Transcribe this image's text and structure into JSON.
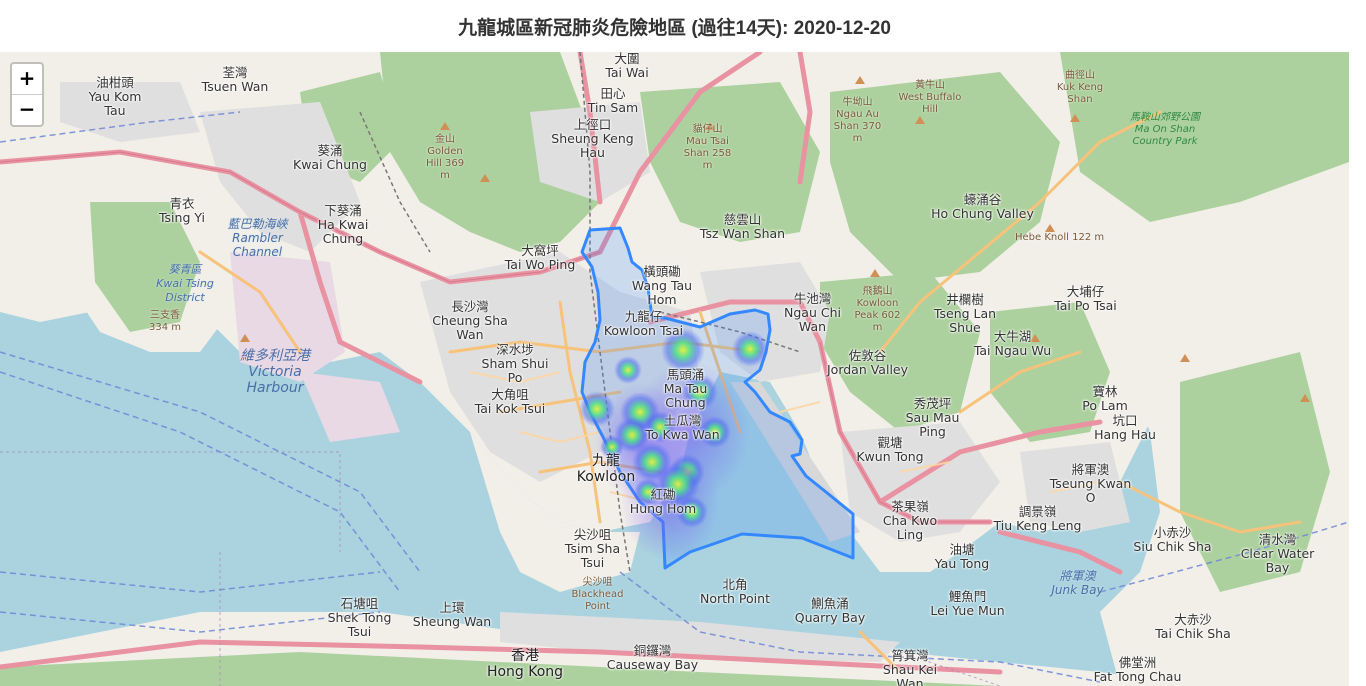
{
  "title": "九龍城區新冠肺炎危險地區 (過往14天): 2020-12-20",
  "zoom": {
    "in_label": "+",
    "out_label": "−"
  },
  "places": [
    {
      "id": "tai-wai",
      "text": "大圍 Tai Wai"
    },
    {
      "id": "tsuen-wan",
      "text": "荃灣 Tsuen Wan"
    },
    {
      "id": "kwai-chung",
      "text": "葵涌 Kwai Chung"
    },
    {
      "id": "tsing-yi",
      "text": "青衣 Tsing Yi"
    },
    {
      "id": "ha-kwai-chung",
      "text": "下葵涌 Ha Kwai Chung"
    },
    {
      "id": "tai-wo-ping",
      "text": "大窩坪 Tai Wo Ping"
    },
    {
      "id": "cheung-sha-wan",
      "text": "長沙灣 Cheung Sha Wan"
    },
    {
      "id": "sham-shui-po",
      "text": "深水埗 Sham Shui Po"
    },
    {
      "id": "tai-kok-tsui",
      "text": "大角咀 Tai Kok Tsui"
    },
    {
      "id": "kowloon",
      "text": "九龍 Kowloon"
    },
    {
      "id": "tsim-sha-tsui",
      "text": "尖沙咀 Tsim Sha Tsui"
    },
    {
      "id": "kowloon-tsai",
      "text": "九龍仔 Kowloon Tsai"
    },
    {
      "id": "wang-tau-hom",
      "text": "橫頭磡 Wang Tau Hom"
    },
    {
      "id": "ma-tau-chung",
      "text": "馬頭涌 Ma Tau Chung"
    },
    {
      "id": "to-kwa-wan",
      "text": "土瓜灣 To Kwa Wan"
    },
    {
      "id": "hung-hom",
      "text": "紅磡 Hung Hom"
    },
    {
      "id": "tsz-wan-shan",
      "text": "慈雲山 Tsz Wan Shan"
    },
    {
      "id": "ngau-chi-wan",
      "text": "牛池灣 Ngau Chi Wan"
    },
    {
      "id": "jordan-valley",
      "text": "佐敦谷 Jordan Valley"
    },
    {
      "id": "sau-mau-ping",
      "text": "秀茂坪 Sau Mau Ping"
    },
    {
      "id": "kwun-tong",
      "text": "觀塘 Kwun Tong"
    },
    {
      "id": "cha-kwo-ling",
      "text": "茶果嶺 Cha Kwo Ling"
    },
    {
      "id": "yau-tong",
      "text": "油塘 Yau Tong"
    },
    {
      "id": "tseung-kwan-o",
      "text": "將軍澳 Tseung Kwan O"
    },
    {
      "id": "tiu-keng-leng",
      "text": "調景嶺 Tiu Keng Leng"
    },
    {
      "id": "hang-hau",
      "text": "坑口 Hang Hau"
    },
    {
      "id": "po-lam",
      "text": "寶林 Po Lam"
    },
    {
      "id": "tai-po-tsai",
      "text": "大埔仔 Tai Po Tsai"
    },
    {
      "id": "tai-ngau-wu",
      "text": "大牛湖 Tai Ngau Wu"
    },
    {
      "id": "lam-shue",
      "text": "井欄樹 Tseng Lan Shue"
    },
    {
      "id": "ho-chung-valley",
      "text": "蠔涌谷 Ho Chung Valley"
    },
    {
      "id": "sheung-keng-hau",
      "text": "上徑口 Sheung Keng Hau"
    },
    {
      "id": "tin-sam",
      "text": "田心 Tin Sam"
    },
    {
      "id": "north-point",
      "text": "北角 North Point"
    },
    {
      "id": "quarry-bay",
      "text": "鰂魚涌 Quarry Bay"
    },
    {
      "id": "causeway-bay",
      "text": "銅鑼灣 Causeway Bay"
    },
    {
      "id": "hong-kong",
      "text": "香港 Hong Kong"
    },
    {
      "id": "sheung-wan",
      "text": "上環 Sheung Wan"
    },
    {
      "id": "shek-tong-tsui",
      "text": "石塘咀 Shek Tong Tsui"
    },
    {
      "id": "shau-kei-wan",
      "text": "筲箕灣 Shau Kei Wan"
    },
    {
      "id": "lei-yue-mun",
      "text": "鯉魚門 Lei Yue Mun"
    },
    {
      "id": "siu-chik-sha",
      "text": "小赤沙 Siu Chik Sha"
    },
    {
      "id": "clear-water-bay",
      "text": "清水灣 Clear Water Bay"
    },
    {
      "id": "tai-chik-sha",
      "text": "大赤沙 Tai Chik Sha"
    },
    {
      "id": "fat-tong-chau",
      "text": "佛堂洲 Fat Tong Chau"
    },
    {
      "id": "kwai-tsing",
      "text": "油柑頭 Yau Kom Tau"
    },
    {
      "id": "kuk-keng-shan",
      "text": "曲徑山 Kuk Keng Shan"
    },
    {
      "id": "wo-yi-hop",
      "text": "黃牛山 West Buffalo Hill"
    }
  ],
  "waters": [
    {
      "id": "victoria-harbour",
      "text": "維多利亞港 Victoria Harbour"
    },
    {
      "id": "rambler-channel",
      "text": "藍巴勒海峽 Rambler Channel"
    },
    {
      "id": "junk-bay",
      "text": "將軍澳 Junk Bay"
    },
    {
      "id": "kwai-tsing-district",
      "text": "葵青區 Kwai Tsing District"
    }
  ],
  "peaks": [
    {
      "id": "golden-hill",
      "text": "金山 Golden Hill 369 m"
    },
    {
      "id": "mau-tsai",
      "text": "貓仔山 Mau Tsai Shan 258 m"
    },
    {
      "id": "ngau-au-shan",
      "text": "牛坳山 Ngau Au Shan 370 m"
    },
    {
      "id": "kowloon-peak",
      "text": "飛鵝山 Kowloon Peak 602 m"
    },
    {
      "id": "hebe-knoll",
      "text": "Hebe Knoll 122 m"
    },
    {
      "id": "blackhead-point",
      "text": "尖沙咀 Blackhead Point"
    },
    {
      "id": "sam-chi-heung",
      "text": "三支香 334 m"
    }
  ],
  "parks": [
    {
      "id": "ma-on-shan-park",
      "text": "馬鞍山郊野公園 Ma On Shan Country Park"
    }
  ],
  "colors": {
    "sea": "#aad3df",
    "land": "#f2efe9",
    "forest": "#add19e",
    "urban": "#e0dfdf",
    "primary_road": "#f9b29c",
    "motorway": "#e892a2",
    "district_outline": "#3388ff",
    "heat_low": "#5a5cf5",
    "heat_high": "#e6f23a"
  }
}
